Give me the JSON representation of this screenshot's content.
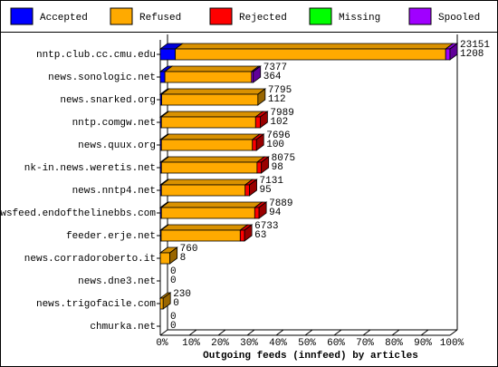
{
  "chart_data": {
    "type": "bar",
    "orientation": "horizontal",
    "stacked": true,
    "title": "Outgoing feeds (innfeed) by articles",
    "categories": [
      "nntp.club.cc.cmu.edu",
      "news.sonologic.net",
      "news.snarked.org",
      "nntp.comgw.net",
      "news.quux.org",
      "nk-in.news.weretis.net",
      "news.nntp4.net",
      "newsfeed.endofthelinebbs.com",
      "feeder.erje.net",
      "news.corradoroberto.it",
      "news.dne3.net",
      "news.trigofacile.com",
      "chmurka.net"
    ],
    "series": [
      {
        "name": "Accepted",
        "color": "#0000ff",
        "values": [
          5.2,
          1.6,
          0.5,
          0.4,
          0.4,
          0.4,
          0.4,
          0.4,
          0.3,
          0.03,
          0,
          0,
          0
        ]
      },
      {
        "name": "Refused",
        "color": "#ffaa00",
        "values": [
          93.3,
          29.9,
          33.2,
          32.5,
          31.4,
          33.0,
          28.9,
          32.2,
          27.3,
          3.3,
          0,
          1.0,
          0
        ]
      },
      {
        "name": "Rejected",
        "color": "#ff0000",
        "values": [
          0,
          0,
          0,
          1.6,
          1.4,
          1.5,
          1.5,
          1.5,
          1.5,
          0,
          0,
          0,
          0
        ]
      },
      {
        "name": "Missing",
        "color": "#00ff00",
        "values": [
          0,
          0,
          0,
          0,
          0,
          0,
          0,
          0,
          0,
          0,
          0,
          0,
          0
        ]
      },
      {
        "name": "Spooled",
        "color": "#a000ff",
        "values": [
          1.5,
          0.6,
          0,
          0,
          0,
          0,
          0,
          0,
          0,
          0,
          0,
          0,
          0
        ]
      }
    ],
    "offered": [
      23151,
      7377,
      7795,
      7989,
      7696,
      8075,
      7131,
      7889,
      6733,
      760,
      0,
      230,
      0
    ],
    "accepted": [
      1208,
      364,
      112,
      102,
      100,
      98,
      95,
      94,
      63,
      8,
      0,
      0,
      0
    ],
    "xlim": [
      0,
      100
    ],
    "xticks": [
      {
        "value": 0,
        "label": "0%"
      },
      {
        "value": 10,
        "label": "10%"
      },
      {
        "value": 20,
        "label": "20%"
      },
      {
        "value": 30,
        "label": "30%"
      },
      {
        "value": 40,
        "label": "40%"
      },
      {
        "value": 50,
        "label": "50%"
      },
      {
        "value": 60,
        "label": "60%"
      },
      {
        "value": 70,
        "label": "70%"
      },
      {
        "value": 80,
        "label": "80%"
      },
      {
        "value": 90,
        "label": "90%"
      },
      {
        "value": 100,
        "label": "100%"
      }
    ]
  }
}
